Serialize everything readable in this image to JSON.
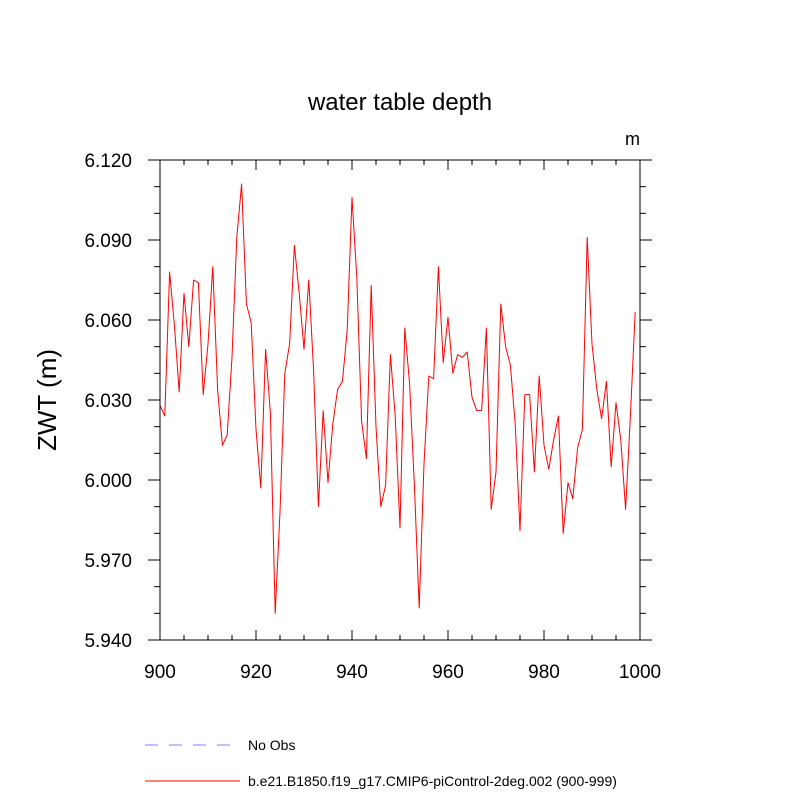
{
  "chart_data": {
    "type": "line",
    "title": "water table depth",
    "units": "m",
    "xlabel": "",
    "ylabel": "ZWT  (m)",
    "xlim": [
      900,
      1000
    ],
    "ylim": [
      5.94,
      6.12
    ],
    "x_ticks": [
      900,
      920,
      940,
      960,
      980,
      1000
    ],
    "x_tick_labels": [
      "900",
      "920",
      "940",
      "960",
      "980",
      "1000"
    ],
    "y_ticks": [
      5.94,
      5.97,
      6.0,
      6.03,
      6.06,
      6.09,
      6.12
    ],
    "y_tick_labels": [
      "5.940",
      "5.970",
      "6.000",
      "6.030",
      "6.060",
      "6.090",
      "6.120"
    ],
    "legend_position": "bottom",
    "series": [
      {
        "name": "No Obs",
        "color": "#8080ff",
        "style": "dashed",
        "values": []
      },
      {
        "name": "b.e21.B1850.f19_g17.CMIP6-piControl-2deg.002 (900-999)",
        "color": "#ff0000",
        "style": "solid",
        "x": [
          900,
          901,
          902,
          903,
          904,
          905,
          906,
          907,
          908,
          909,
          910,
          911,
          912,
          913,
          914,
          915,
          916,
          917,
          918,
          919,
          920,
          921,
          922,
          923,
          924,
          925,
          926,
          927,
          928,
          929,
          930,
          931,
          932,
          933,
          934,
          935,
          936,
          937,
          938,
          939,
          940,
          941,
          942,
          943,
          944,
          945,
          946,
          947,
          948,
          949,
          950,
          951,
          952,
          953,
          954,
          955,
          956,
          957,
          958,
          959,
          960,
          961,
          962,
          963,
          964,
          965,
          966,
          967,
          968,
          969,
          970,
          971,
          972,
          973,
          974,
          975,
          976,
          977,
          978,
          979,
          980,
          981,
          982,
          983,
          984,
          985,
          986,
          987,
          988,
          989,
          990,
          991,
          992,
          993,
          994,
          995,
          996,
          997,
          998,
          999
        ],
        "values": [
          6.028,
          6.024,
          6.078,
          6.058,
          6.033,
          6.07,
          6.05,
          6.075,
          6.074,
          6.032,
          6.051,
          6.08,
          6.034,
          6.013,
          6.017,
          6.046,
          6.091,
          6.111,
          6.066,
          6.059,
          6.019,
          5.997,
          6.049,
          6.025,
          5.95,
          5.988,
          6.04,
          6.051,
          6.088,
          6.07,
          6.049,
          6.075,
          6.041,
          5.99,
          6.026,
          5.999,
          6.021,
          6.034,
          6.037,
          6.056,
          6.106,
          6.076,
          6.022,
          6.008,
          6.073,
          6.02,
          5.99,
          5.998,
          6.047,
          6.024,
          5.982,
          6.057,
          6.036,
          5.998,
          5.952,
          6.006,
          6.039,
          6.038,
          6.08,
          6.044,
          6.061,
          6.04,
          6.047,
          6.046,
          6.048,
          6.031,
          6.026,
          6.026,
          6.057,
          5.989,
          6.003,
          6.066,
          6.05,
          6.043,
          6.021,
          5.981,
          6.032,
          6.032,
          6.003,
          6.039,
          6.013,
          6.004,
          6.015,
          6.024,
          5.98,
          5.999,
          5.993,
          6.012,
          6.019,
          6.091,
          6.051,
          6.034,
          6.023,
          6.037,
          6.005,
          6.029,
          6.015,
          5.989,
          6.024,
          6.063
        ]
      }
    ]
  }
}
